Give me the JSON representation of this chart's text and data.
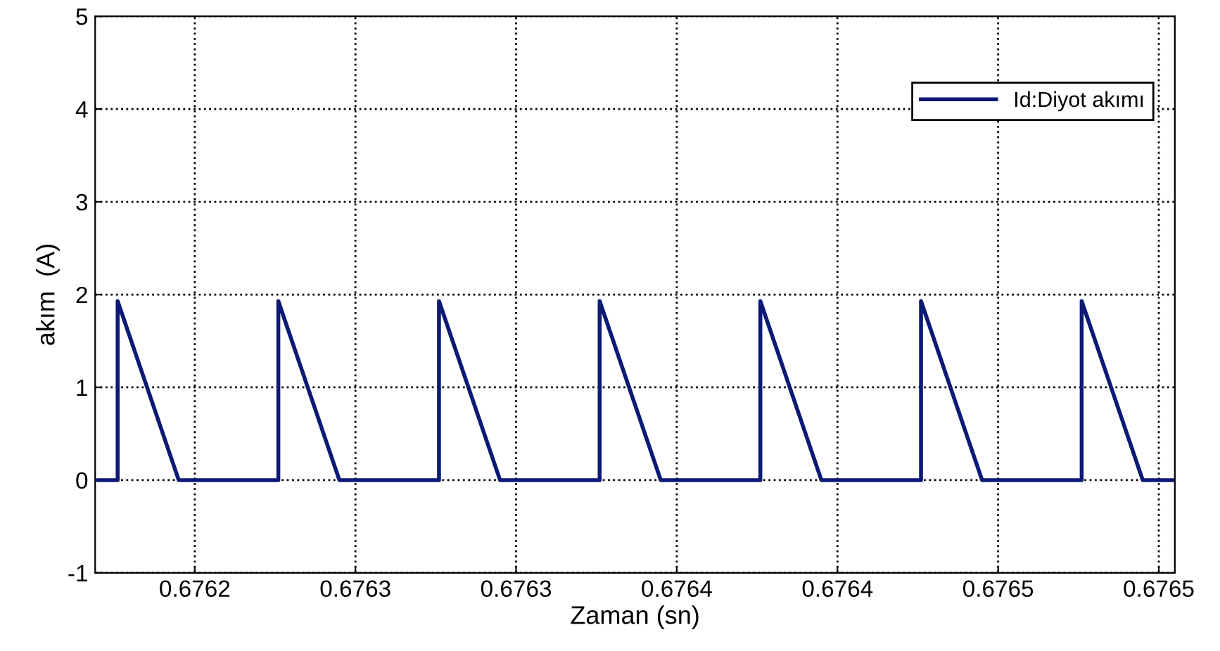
{
  "chart_data": {
    "type": "line",
    "xlabel": "Zaman (sn)",
    "ylabel": "akım  (A)",
    "series": [
      {
        "name": "Id:Diyot akımı",
        "color": "#0c1a75",
        "x": [
          0.67617,
          0.676176,
          0.676176,
          0.676195,
          0.676226,
          0.676226,
          0.676245,
          0.676276,
          0.676276,
          0.676295,
          0.676326,
          0.676326,
          0.676345,
          0.676376,
          0.676376,
          0.676395,
          0.676426,
          0.676426,
          0.676445,
          0.676476,
          0.676476,
          0.676495,
          0.676505
        ],
        "values": [
          0,
          0,
          1.93,
          0,
          0,
          1.93,
          0,
          0,
          1.93,
          0,
          0,
          1.93,
          0,
          0,
          1.93,
          0,
          0,
          1.93,
          0,
          0,
          1.93,
          0,
          0
        ]
      }
    ],
    "xlim": [
      0.676169,
      0.676505
    ],
    "xticks": [
      {
        "value": 0.6762,
        "label": "0.6762"
      },
      {
        "value": 0.67625,
        "label": "0.6763"
      },
      {
        "value": 0.6763,
        "label": "0.6763"
      },
      {
        "value": 0.67635,
        "label": "0.6764"
      },
      {
        "value": 0.6764,
        "label": "0.6764"
      },
      {
        "value": 0.67645,
        "label": "0.6765"
      },
      {
        "value": 0.6765,
        "label": "0.6765"
      }
    ],
    "ylim": [
      -1,
      5
    ],
    "yticks": [
      -1,
      0,
      1,
      2,
      3,
      4,
      5
    ],
    "grid": true,
    "legend": "top right",
    "line_style": "solid",
    "marker": "none"
  }
}
